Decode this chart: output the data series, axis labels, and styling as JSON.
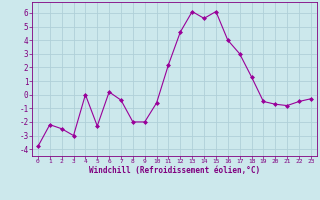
{
  "x": [
    0,
    1,
    2,
    3,
    4,
    5,
    6,
    7,
    8,
    9,
    10,
    11,
    12,
    13,
    14,
    15,
    16,
    17,
    18,
    19,
    20,
    21,
    22,
    23
  ],
  "y": [
    -3.8,
    -2.2,
    -2.5,
    -3.0,
    0.0,
    -2.3,
    0.2,
    -0.4,
    -2.0,
    -2.0,
    -0.6,
    2.2,
    4.6,
    6.1,
    5.6,
    6.1,
    4.0,
    3.0,
    1.3,
    -0.5,
    -0.7,
    -0.8,
    -0.5,
    -0.3
  ],
  "line_color": "#990099",
  "marker": "D",
  "marker_size": 2,
  "bg_color": "#cce8ec",
  "grid_color": "#b0d0d8",
  "xlabel": "Windchill (Refroidissement éolien,°C)",
  "xlabel_color": "#800080",
  "tick_color": "#800080",
  "ylim": [
    -4.5,
    6.8
  ],
  "xlim": [
    -0.5,
    23.5
  ],
  "yticks": [
    -4,
    -3,
    -2,
    -1,
    0,
    1,
    2,
    3,
    4,
    5,
    6
  ],
  "xticks": [
    0,
    1,
    2,
    3,
    4,
    5,
    6,
    7,
    8,
    9,
    10,
    11,
    12,
    13,
    14,
    15,
    16,
    17,
    18,
    19,
    20,
    21,
    22,
    23
  ]
}
